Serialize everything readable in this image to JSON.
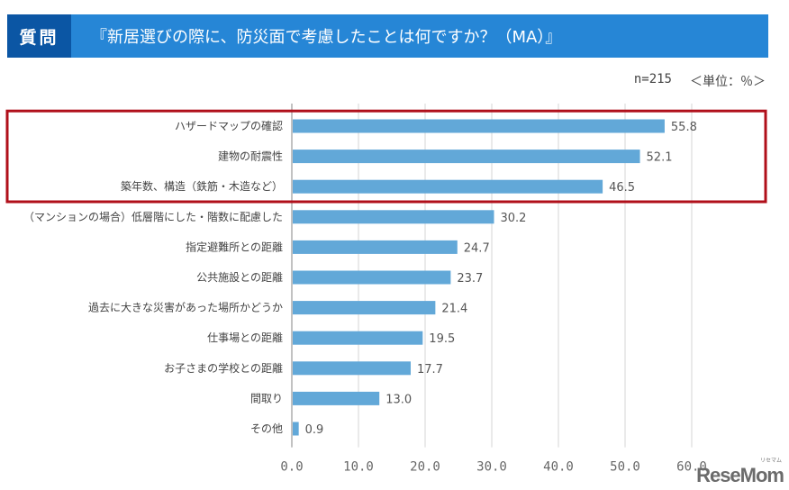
{
  "header": {
    "tag": "質問",
    "title": "『新居選びの際に、防災面で考慮したことは何ですか？（MA）』"
  },
  "meta": {
    "sample": "n=215",
    "unit": "＜単位：％＞"
  },
  "logo": {
    "text": "ReseMom",
    "ruby": "リセマム"
  },
  "colors": {
    "header_bg": "#2686d6",
    "tag_bg": "#0b56a4",
    "bar": "#62a8d8",
    "highlight_box": "#b00f1a",
    "grid": "#dddddd"
  },
  "chart_data": {
    "type": "bar",
    "orientation": "horizontal",
    "title": "新居選びの際に、防災面で考慮したことは何ですか？（MA）",
    "xlabel": "",
    "ylabel": "",
    "unit": "%",
    "xlim": [
      0,
      60
    ],
    "ticks": [
      0,
      10,
      20,
      30,
      40,
      50,
      60
    ],
    "tick_labels": [
      "0.0",
      "10.0",
      "20.0",
      "30.0",
      "40.0",
      "50.0",
      "60.0"
    ],
    "grid": true,
    "categories": [
      "ハザードマップの確認",
      "建物の耐震性",
      "築年数、構造（鉄筋・木造など）",
      "（マンションの場合）低層階にした・階数に配慮した",
      "指定避難所との距離",
      "公共施設との距離",
      "過去に大きな災害があった場所かどうか",
      "仕事場との距離",
      "お子さまの学校との距離",
      "間取り",
      "その他"
    ],
    "values": [
      55.8,
      52.1,
      46.5,
      30.2,
      24.7,
      23.7,
      21.4,
      19.5,
      17.7,
      13.0,
      0.9
    ],
    "value_labels": [
      "55.8",
      "52.1",
      "46.5",
      "30.2",
      "24.7",
      "23.7",
      "21.4",
      "19.5",
      "17.7",
      "13.0",
      "0.9"
    ],
    "highlighted_categories": [
      0,
      1,
      2
    ]
  }
}
